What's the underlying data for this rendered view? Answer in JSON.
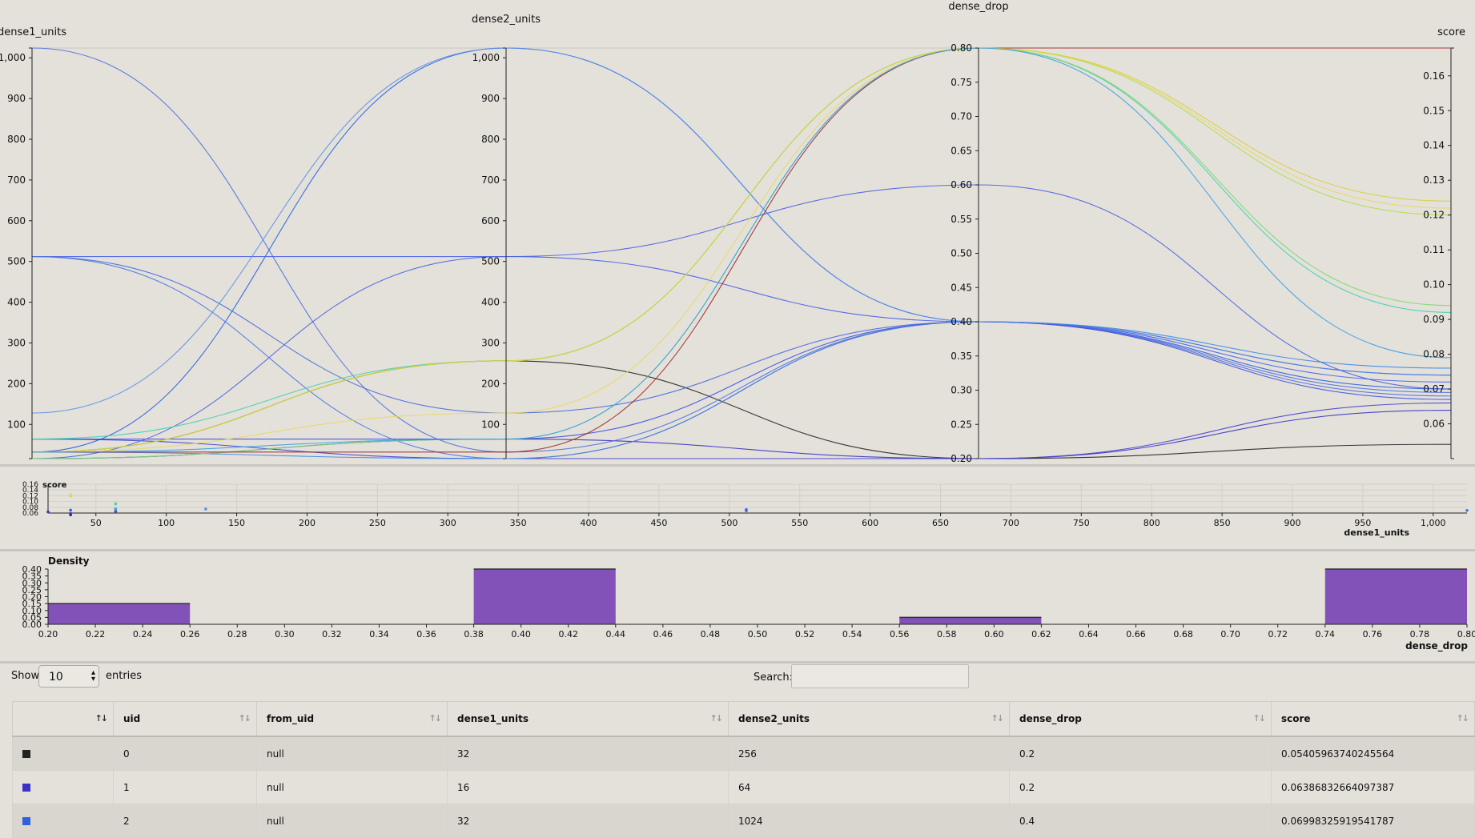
{
  "parallel": {
    "axes": [
      {
        "name": "dense1_units",
        "min": 16,
        "max": 1024,
        "ticks": [
          {
            "v": 100,
            "label": "100"
          },
          {
            "v": 200,
            "label": "200"
          },
          {
            "v": 300,
            "label": "300"
          },
          {
            "v": 400,
            "label": "400"
          },
          {
            "v": 500,
            "label": "500"
          },
          {
            "v": 600,
            "label": "600"
          },
          {
            "v": 700,
            "label": "700"
          },
          {
            "v": 800,
            "label": "800"
          },
          {
            "v": 900,
            "label": "900"
          },
          {
            "v": 1000,
            "label": "1,000"
          }
        ]
      },
      {
        "name": "dense2_units",
        "min": 16,
        "max": 1024,
        "ticks": [
          {
            "v": 100,
            "label": "100"
          },
          {
            "v": 200,
            "label": "200"
          },
          {
            "v": 300,
            "label": "300"
          },
          {
            "v": 400,
            "label": "400"
          },
          {
            "v": 500,
            "label": "500"
          },
          {
            "v": 600,
            "label": "600"
          },
          {
            "v": 700,
            "label": "700"
          },
          {
            "v": 800,
            "label": "800"
          },
          {
            "v": 900,
            "label": "900"
          },
          {
            "v": 1000,
            "label": "1,000"
          }
        ]
      },
      {
        "name": "dense_drop",
        "min": 0.2,
        "max": 0.8,
        "ticks": [
          {
            "v": 0.2,
            "label": "0.20"
          },
          {
            "v": 0.25,
            "label": "0.25"
          },
          {
            "v": 0.3,
            "label": "0.30"
          },
          {
            "v": 0.35,
            "label": "0.35"
          },
          {
            "v": 0.4,
            "label": "0.40"
          },
          {
            "v": 0.45,
            "label": "0.45"
          },
          {
            "v": 0.5,
            "label": "0.50"
          },
          {
            "v": 0.55,
            "label": "0.55"
          },
          {
            "v": 0.6,
            "label": "0.60"
          },
          {
            "v": 0.65,
            "label": "0.65"
          },
          {
            "v": 0.7,
            "label": "0.70"
          },
          {
            "v": 0.75,
            "label": "0.75"
          },
          {
            "v": 0.8,
            "label": "0.80"
          }
        ]
      },
      {
        "name": "score",
        "min": 0.05,
        "max": 0.168,
        "ticks": [
          {
            "v": 0.06,
            "label": "0.06"
          },
          {
            "v": 0.07,
            "label": "0.07"
          },
          {
            "v": 0.08,
            "label": "0.08"
          },
          {
            "v": 0.09,
            "label": "0.09"
          },
          {
            "v": 0.1,
            "label": "0.10"
          },
          {
            "v": 0.11,
            "label": "0.11"
          },
          {
            "v": 0.12,
            "label": "0.12"
          },
          {
            "v": 0.13,
            "label": "0.13"
          },
          {
            "v": 0.14,
            "label": "0.14"
          },
          {
            "v": 0.15,
            "label": "0.15"
          },
          {
            "v": 0.16,
            "label": "0.16"
          }
        ]
      }
    ]
  },
  "scatter": {
    "ylabel": "score",
    "xlabel": "dense1_units",
    "yticks": [
      "0.16",
      "0.14",
      "0.12",
      "0.10",
      "0.08",
      "0.06"
    ],
    "xticks": [
      {
        "v": 50,
        "label": "50"
      },
      {
        "v": 100,
        "label": "100"
      },
      {
        "v": 150,
        "label": "150"
      },
      {
        "v": 200,
        "label": "200"
      },
      {
        "v": 250,
        "label": "250"
      },
      {
        "v": 300,
        "label": "300"
      },
      {
        "v": 350,
        "label": "350"
      },
      {
        "v": 400,
        "label": "400"
      },
      {
        "v": 450,
        "label": "450"
      },
      {
        "v": 500,
        "label": "500"
      },
      {
        "v": 550,
        "label": "550"
      },
      {
        "v": 600,
        "label": "600"
      },
      {
        "v": 650,
        "label": "650"
      },
      {
        "v": 700,
        "label": "700"
      },
      {
        "v": 750,
        "label": "750"
      },
      {
        "v": 800,
        "label": "800"
      },
      {
        "v": 850,
        "label": "850"
      },
      {
        "v": 900,
        "label": "900"
      },
      {
        "v": 950,
        "label": "950"
      },
      {
        "v": 1000,
        "label": "1,000"
      }
    ]
  },
  "histogram": {
    "ylabel": "Density",
    "xlabel": "dense_drop",
    "yticks": [
      "0.40",
      "0.35",
      "0.30",
      "0.25",
      "0.20",
      "0.15",
      "0.10",
      "0.05",
      "0.00"
    ],
    "xticks": [
      "0.20",
      "0.22",
      "0.24",
      "0.26",
      "0.28",
      "0.30",
      "0.32",
      "0.34",
      "0.36",
      "0.38",
      "0.40",
      "0.42",
      "0.44",
      "0.46",
      "0.48",
      "0.50",
      "0.52",
      "0.54",
      "0.56",
      "0.58",
      "0.60",
      "0.62",
      "0.64",
      "0.66",
      "0.68",
      "0.70",
      "0.72",
      "0.74",
      "0.76",
      "0.78",
      "0.80"
    ]
  },
  "chart_data": [
    {
      "type": "parallel_coordinates",
      "dimensions": [
        "dense1_units",
        "dense2_units",
        "dense_drop",
        "score"
      ],
      "rows": [
        {
          "dense1_units": 32,
          "dense2_units": 256,
          "dense_drop": 0.2,
          "score": 0.0541,
          "color": "#222222"
        },
        {
          "dense1_units": 16,
          "dense2_units": 64,
          "dense_drop": 0.2,
          "score": 0.0639,
          "color": "#3a32c8"
        },
        {
          "dense1_units": 32,
          "dense2_units": 1024,
          "dense_drop": 0.4,
          "score": 0.07,
          "color": "#2a62e0"
        },
        {
          "dense1_units": 1024,
          "dense2_units": 32,
          "dense_drop": 0.4,
          "score": 0.069,
          "color": "#5070e0"
        },
        {
          "dense1_units": 512,
          "dense2_units": 128,
          "dense_drop": 0.4,
          "score": 0.068,
          "color": "#4a6ae0"
        },
        {
          "dense1_units": 512,
          "dense2_units": 512,
          "dense_drop": 0.4,
          "score": 0.072,
          "color": "#4860e8"
        },
        {
          "dense1_units": 64,
          "dense2_units": 16,
          "dense_drop": 0.2,
          "score": 0.066,
          "color": "#4040d0"
        },
        {
          "dense1_units": 64,
          "dense2_units": 64,
          "dense_drop": 0.4,
          "score": 0.067,
          "color": "#3c50e0"
        },
        {
          "dense1_units": 128,
          "dense2_units": 1024,
          "dense_drop": 0.4,
          "score": 0.074,
          "color": "#5a90e8"
        },
        {
          "dense1_units": 16,
          "dense2_units": 512,
          "dense_drop": 0.6,
          "score": 0.07,
          "color": "#4a64e2"
        },
        {
          "dense1_units": 32,
          "dense2_units": 16,
          "dense_drop": 0.4,
          "score": 0.076,
          "color": "#3a8ae8"
        },
        {
          "dense1_units": 512,
          "dense2_units": 16,
          "dense_drop": 0.4,
          "score": 0.074,
          "color": "#4a7ae0"
        },
        {
          "dense1_units": 64,
          "dense2_units": 256,
          "dense_drop": 0.8,
          "score": 0.092,
          "color": "#40d0b0"
        },
        {
          "dense1_units": 32,
          "dense2_units": 128,
          "dense_drop": 0.8,
          "score": 0.122,
          "color": "#e8d860"
        },
        {
          "dense1_units": 32,
          "dense2_units": 256,
          "dense_drop": 0.8,
          "score": 0.12,
          "color": "#b0e050"
        },
        {
          "dense1_units": 16,
          "dense2_units": 64,
          "dense_drop": 0.8,
          "score": 0.094,
          "color": "#80d870"
        },
        {
          "dense1_units": 32,
          "dense2_units": 32,
          "dense_drop": 0.8,
          "score": 0.168,
          "color": "#a02a2a"
        },
        {
          "dense1_units": 32,
          "dense2_units": 256,
          "dense_drop": 0.8,
          "score": 0.124,
          "color": "#d8d040"
        },
        {
          "dense1_units": 32,
          "dense2_units": 64,
          "dense_drop": 0.8,
          "score": 0.079,
          "color": "#3aa0e8"
        }
      ]
    },
    {
      "type": "scatter",
      "xlabel": "dense1_units",
      "ylabel": "score",
      "points": [
        {
          "x": 16,
          "y": 0.064,
          "color": "#3a32c8"
        },
        {
          "x": 32,
          "y": 0.054,
          "color": "#222222"
        },
        {
          "x": 32,
          "y": 0.058,
          "color": "#3a32c8"
        },
        {
          "x": 32,
          "y": 0.07,
          "color": "#2a62e0"
        },
        {
          "x": 32,
          "y": 0.12,
          "color": "#d8d040"
        },
        {
          "x": 32,
          "y": 0.124,
          "color": "#e8d860"
        },
        {
          "x": 64,
          "y": 0.066,
          "color": "#3c50e0"
        },
        {
          "x": 64,
          "y": 0.074,
          "color": "#3aa0e8"
        },
        {
          "x": 64,
          "y": 0.092,
          "color": "#40d0b0"
        },
        {
          "x": 128,
          "y": 0.074,
          "color": "#5a90e8"
        },
        {
          "x": 512,
          "y": 0.068,
          "color": "#4a6ae0"
        },
        {
          "x": 512,
          "y": 0.072,
          "color": "#4860e8"
        },
        {
          "x": 1024,
          "y": 0.069,
          "color": "#5070e0"
        }
      ]
    },
    {
      "type": "bar",
      "xlabel": "dense_drop",
      "ylabel": "Density",
      "bins": [
        {
          "x0": 0.2,
          "x1": 0.26,
          "density": 0.15
        },
        {
          "x0": 0.38,
          "x1": 0.44,
          "density": 0.4
        },
        {
          "x0": 0.56,
          "x1": 0.62,
          "density": 0.05
        },
        {
          "x0": 0.74,
          "x1": 0.8,
          "density": 0.4
        }
      ],
      "color": "#8352b8"
    }
  ],
  "controls": {
    "show_label": "Show",
    "page_size": "10",
    "entries_label": "entries",
    "search_label": "Search:",
    "search_value": ""
  },
  "table": {
    "columns": [
      "",
      "uid",
      "from_uid",
      "dense1_units",
      "dense2_units",
      "dense_drop",
      "score"
    ],
    "rows": [
      {
        "color": "#222222",
        "uid": "0",
        "from_uid": "null",
        "dense1_units": "32",
        "dense2_units": "256",
        "dense_drop": "0.2",
        "score": "0.05405963740245564"
      },
      {
        "color": "#3a32c8",
        "uid": "1",
        "from_uid": "null",
        "dense1_units": "16",
        "dense2_units": "64",
        "dense_drop": "0.2",
        "score": "0.06386832664097387"
      },
      {
        "color": "#2a62e0",
        "uid": "2",
        "from_uid": "null",
        "dense1_units": "32",
        "dense2_units": "1024",
        "dense_drop": "0.4",
        "score": "0.06998325919541787"
      }
    ]
  }
}
